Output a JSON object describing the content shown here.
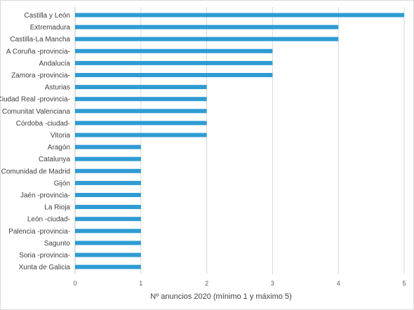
{
  "chart_data": {
    "type": "bar",
    "orientation": "horizontal",
    "categories": [
      "Castilla y León",
      "Extremadura",
      "Castilla-La Mancha",
      "A Coruña -provincia-",
      "Andalucía",
      "Zamora -provincia-",
      "Asturias",
      "Ciudad Real -provincia-",
      "Comunitat Valenciana",
      "Córdoba -ciudad-",
      "Vitoria",
      "Aragón",
      "Catalunya",
      "Comunidad de Madrid",
      "Gijón",
      "Jaén -provincia-",
      "La Rioja",
      "León -ciudad-",
      "Palencia -provincia-",
      "Sagunto",
      "Soria -provincia-",
      "Xunta de Galicia"
    ],
    "values": [
      5,
      4,
      4,
      3,
      3,
      3,
      2,
      2,
      2,
      2,
      2,
      1,
      1,
      1,
      1,
      1,
      1,
      1,
      1,
      1,
      1,
      1
    ],
    "xlabel": "Nº anuncios 2020 (mínimo 1 y máximo 5)",
    "ylabel": "",
    "xlim": [
      0,
      5
    ],
    "xticks": [
      "0",
      "1",
      "2",
      "3",
      "4",
      "5"
    ],
    "grid": true,
    "bar_color": "#2f9bd3",
    "grid_color": "#d9d9d9"
  }
}
